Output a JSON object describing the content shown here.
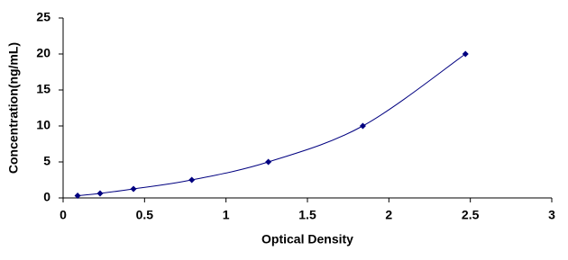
{
  "chart_data": {
    "type": "scatter",
    "x_label": "Optical Density",
    "y_label": "Concentration(ng/mL)",
    "series": [
      {
        "color": "#000080",
        "x": [
          0.089,
          0.227,
          0.432,
          0.79,
          1.26,
          1.84,
          2.47
        ],
        "values": [
          0.31,
          0.63,
          1.25,
          2.5,
          5,
          10,
          20
        ]
      }
    ],
    "smooth_line": true,
    "xlim": [
      0,
      3
    ],
    "xticks": [
      0,
      0.5,
      1,
      1.5,
      2,
      2.5,
      3
    ],
    "ylim": [
      0,
      25
    ],
    "yticks": [
      0,
      5,
      10,
      15,
      20,
      25
    ]
  }
}
